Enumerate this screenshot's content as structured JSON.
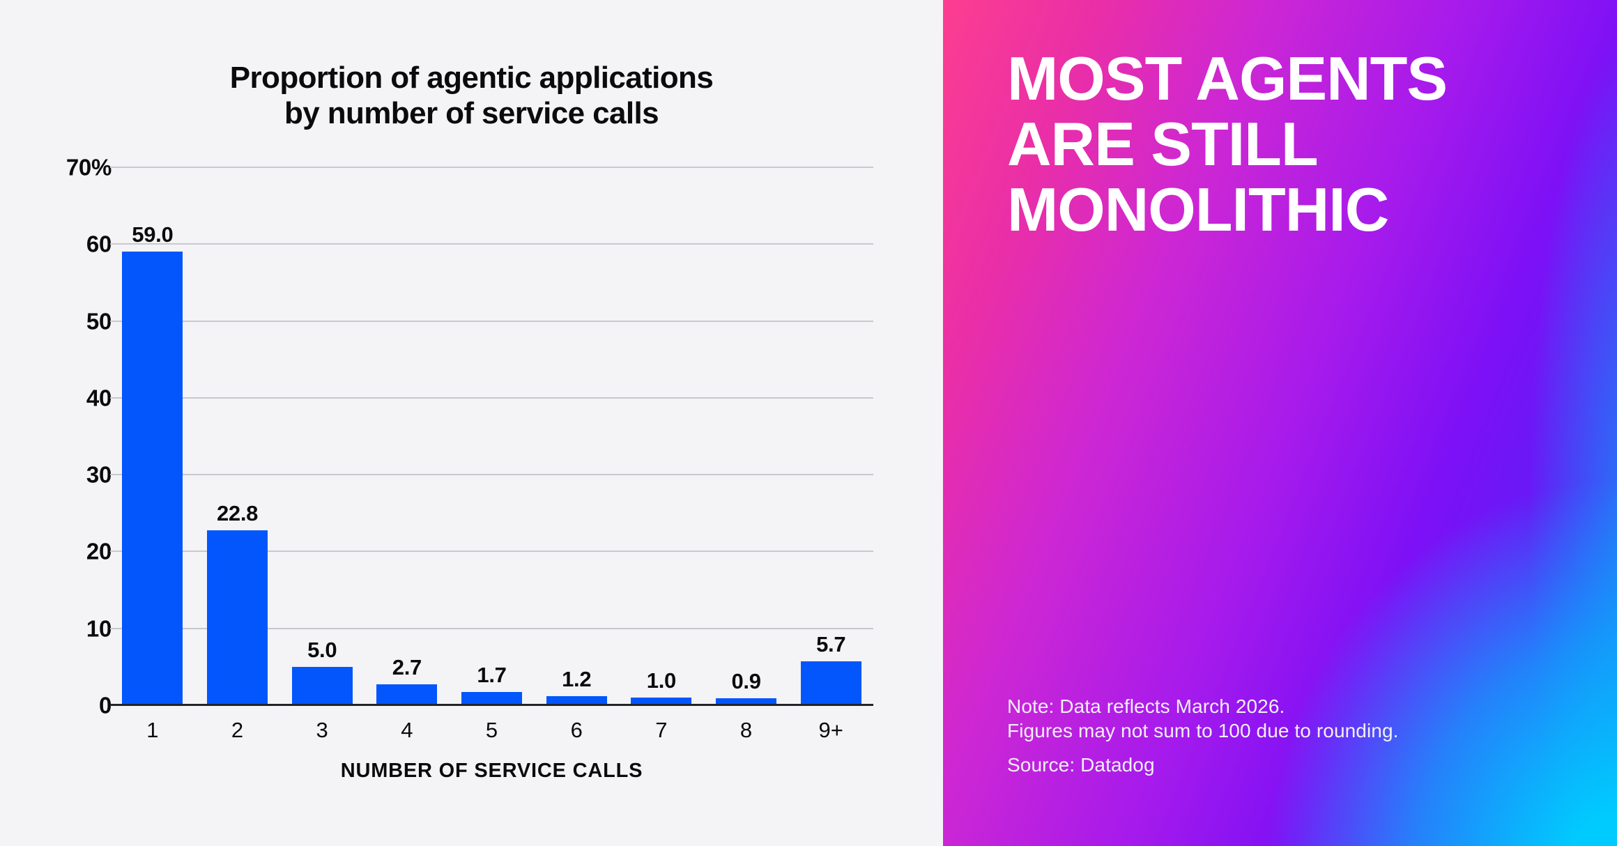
{
  "chart_data": {
    "type": "bar",
    "title": "Proportion of agentic applications by number of service calls",
    "title_lines": [
      "Proportion of agentic applications",
      "by number of service calls"
    ],
    "categories": [
      "1",
      "2",
      "3",
      "4",
      "5",
      "6",
      "7",
      "8",
      "9+"
    ],
    "values": [
      59.0,
      22.8,
      5.0,
      2.7,
      1.7,
      1.2,
      1.0,
      0.9,
      5.7
    ],
    "value_labels": [
      "59.0",
      "22.8",
      "5.0",
      "2.7",
      "1.7",
      "1.2",
      "1.0",
      "0.9",
      "5.7"
    ],
    "xlabel": "NUMBER OF SERVICE CALLS",
    "ylabel": "",
    "ylim": [
      0,
      70
    ],
    "ytick_values": [
      70,
      60,
      50,
      40,
      30,
      20,
      10,
      0
    ],
    "ytick_labels": [
      "70%",
      "60",
      "50",
      "40",
      "30",
      "20",
      "10",
      "0"
    ],
    "grid": true,
    "legend": "none",
    "bar_color": "#0356FC",
    "panel_background": "#F4F3F5"
  },
  "right_panel": {
    "heading_lines": [
      "MOST AGENTS",
      "ARE STILL",
      "MONOLITHIC"
    ],
    "note_lines": [
      "Note: Data reflects March 2026.",
      "Figures may not sum to 100 due to rounding."
    ],
    "source": "Source: Datadog",
    "gradient_colors": {
      "top_left_pink": "#FC3E90",
      "mid_purple": "#A51AEC",
      "top_right_violet": "#5A20F6",
      "bottom_right_cyan": "#00CBFE"
    },
    "text_color": "#FFFFFF"
  }
}
